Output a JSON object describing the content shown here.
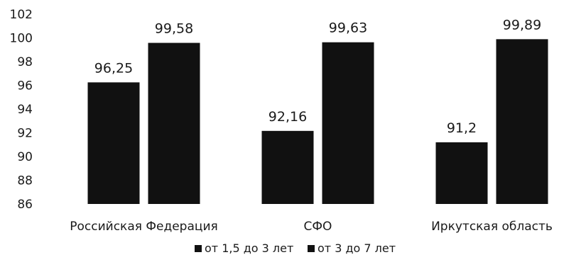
{
  "chart_data": {
    "type": "bar",
    "title": "",
    "xlabel": "",
    "ylabel": "",
    "categories": [
      "Российская Федерация",
      "СФО",
      "Иркутская область"
    ],
    "series": [
      {
        "name": "от 1,5 до 3 лет",
        "values": [
          96.25,
          92.16,
          91.2
        ],
        "labels": [
          "96,25",
          "92,16",
          "91,2"
        ],
        "color": "#111111"
      },
      {
        "name": "от 3 до 7 лет",
        "values": [
          99.58,
          99.63,
          99.89
        ],
        "labels": [
          "99,58",
          "99,63",
          "99,89"
        ],
        "color": "#111111"
      }
    ],
    "ylim": [
      86,
      102
    ],
    "yticks": [
      86,
      88,
      90,
      92,
      94,
      96,
      98,
      100,
      102
    ],
    "grid": false,
    "legend": "bottom"
  }
}
